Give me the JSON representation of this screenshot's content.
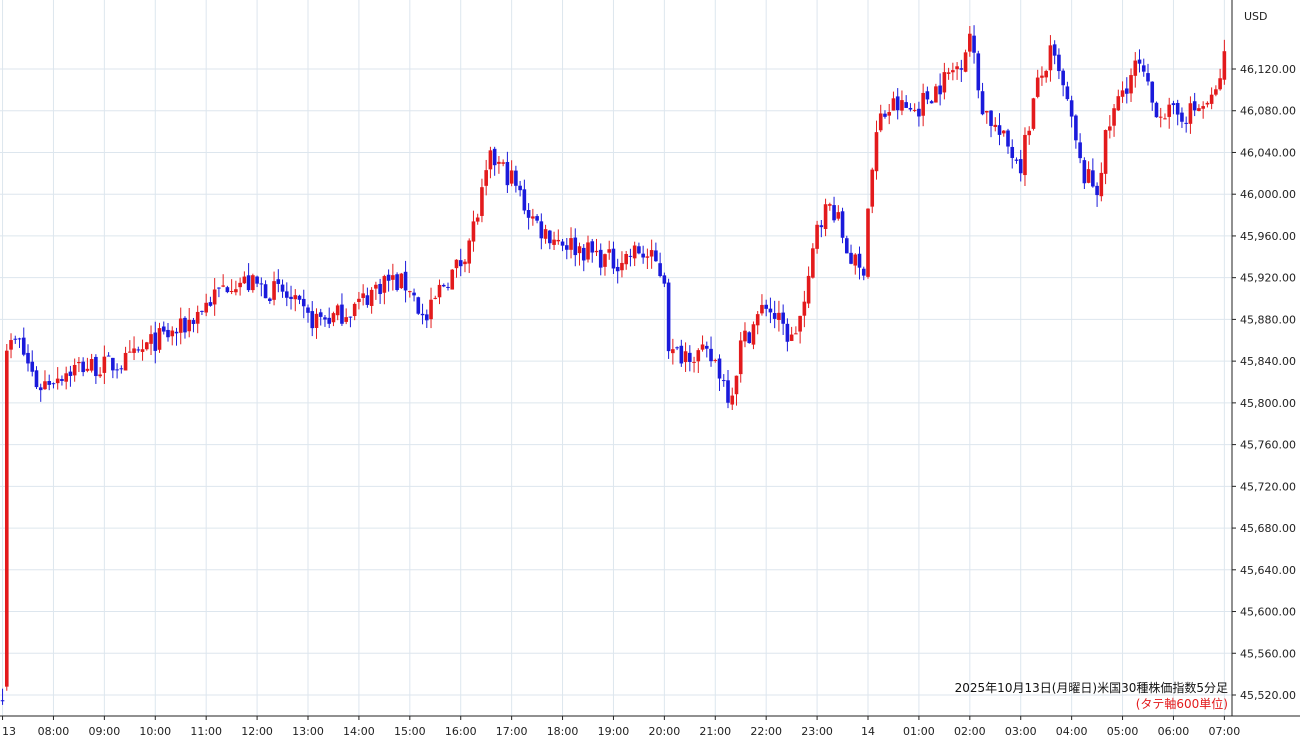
{
  "chart_data": {
    "type": "candlestick",
    "currency_label": "USD",
    "caption_line1": "2025年10月13日(月曜日)米国30種株価指数5分足",
    "caption_line2": "(タテ軸600単位)",
    "colors": {
      "up": "#e31a1c",
      "down": "#1a1adb",
      "grid": "#dde6ee",
      "axis": "#222222",
      "caption2": "#e31a1c"
    },
    "grid": true,
    "ylim": [
      45500,
      46170
    ],
    "y_ticks": [
      {
        "value": 45520,
        "label": "45,520.00"
      },
      {
        "value": 45560,
        "label": "45,560.00"
      },
      {
        "value": 45600,
        "label": "45,600.00"
      },
      {
        "value": 45640,
        "label": "45,640.00"
      },
      {
        "value": 45680,
        "label": "45,680.00"
      },
      {
        "value": 45720,
        "label": "45,720.00"
      },
      {
        "value": 45760,
        "label": "45,760.00"
      },
      {
        "value": 45800,
        "label": "45,800.00"
      },
      {
        "value": 45840,
        "label": "45,840.00"
      },
      {
        "value": 45880,
        "label": "45,880.00"
      },
      {
        "value": 45920,
        "label": "45,920.00"
      },
      {
        "value": 45960,
        "label": "45,960.00"
      },
      {
        "value": 46000,
        "label": "46,000.00"
      },
      {
        "value": 46040,
        "label": "46,040.00"
      },
      {
        "value": 46080,
        "label": "46,080.00"
      },
      {
        "value": 46120,
        "label": "46,120.00"
      }
    ],
    "x_ticks": [
      {
        "hours": 0,
        "label": "13"
      },
      {
        "hours": 1,
        "label": "08:00"
      },
      {
        "hours": 2,
        "label": "09:00"
      },
      {
        "hours": 3,
        "label": "10:00"
      },
      {
        "hours": 4,
        "label": "11:00"
      },
      {
        "hours": 5,
        "label": "12:00"
      },
      {
        "hours": 6,
        "label": "13:00"
      },
      {
        "hours": 7,
        "label": "14:00"
      },
      {
        "hours": 8,
        "label": "15:00"
      },
      {
        "hours": 9,
        "label": "16:00"
      },
      {
        "hours": 10,
        "label": "17:00"
      },
      {
        "hours": 11,
        "label": "18:00"
      },
      {
        "hours": 12,
        "label": "19:00"
      },
      {
        "hours": 13,
        "label": "20:00"
      },
      {
        "hours": 14,
        "label": "21:00"
      },
      {
        "hours": 15,
        "label": "22:00"
      },
      {
        "hours": 16,
        "label": "23:00"
      },
      {
        "hours": 17,
        "label": "14"
      },
      {
        "hours": 18,
        "label": "01:00"
      },
      {
        "hours": 19,
        "label": "02:00"
      },
      {
        "hours": 20,
        "label": "03:00"
      },
      {
        "hours": 21,
        "label": "04:00"
      },
      {
        "hours": 22,
        "label": "05:00"
      },
      {
        "hours": 23,
        "label": "06:00"
      },
      {
        "hours": 24,
        "label": "07:00"
      }
    ],
    "x_range_hours": [
      -0.05,
      24.15
    ],
    "series_anchors": [
      [
        0.0,
        45525
      ],
      [
        0.05,
        45850
      ],
      [
        0.3,
        45860
      ],
      [
        0.7,
        45815
      ],
      [
        1.0,
        45825
      ],
      [
        1.5,
        45835
      ],
      [
        2.0,
        45835
      ],
      [
        2.5,
        45840
      ],
      [
        3.0,
        45860
      ],
      [
        3.5,
        45870
      ],
      [
        4.0,
        45895
      ],
      [
        4.5,
        45918
      ],
      [
        5.0,
        45912
      ],
      [
        5.5,
        45905
      ],
      [
        6.0,
        45880
      ],
      [
        6.5,
        45882
      ],
      [
        7.0,
        45895
      ],
      [
        7.5,
        45918
      ],
      [
        8.0,
        45912
      ],
      [
        8.3,
        45875
      ],
      [
        8.6,
        45910
      ],
      [
        9.0,
        45935
      ],
      [
        9.3,
        45975
      ],
      [
        9.6,
        46035
      ],
      [
        10.0,
        46015
      ],
      [
        10.3,
        45985
      ],
      [
        10.6,
        45965
      ],
      [
        11.0,
        45955
      ],
      [
        11.5,
        45945
      ],
      [
        12.0,
        45935
      ],
      [
        12.5,
        45945
      ],
      [
        12.8,
        45935
      ],
      [
        13.0,
        45920
      ],
      [
        13.1,
        45845
      ],
      [
        13.5,
        45850
      ],
      [
        14.0,
        45840
      ],
      [
        14.3,
        45805
      ],
      [
        14.5,
        45855
      ],
      [
        15.0,
        45895
      ],
      [
        15.2,
        45880
      ],
      [
        15.5,
        45860
      ],
      [
        15.8,
        45900
      ],
      [
        16.0,
        45975
      ],
      [
        16.3,
        45990
      ],
      [
        16.6,
        45945
      ],
      [
        16.9,
        45920
      ],
      [
        17.0,
        45990
      ],
      [
        17.2,
        46070
      ],
      [
        17.5,
        46085
      ],
      [
        17.9,
        46080
      ],
      [
        18.3,
        46100
      ],
      [
        18.8,
        46125
      ],
      [
        19.0,
        46155
      ],
      [
        19.2,
        46090
      ],
      [
        19.6,
        46055
      ],
      [
        20.0,
        46030
      ],
      [
        20.3,
        46100
      ],
      [
        20.6,
        46135
      ],
      [
        20.9,
        46090
      ],
      [
        21.2,
        46020
      ],
      [
        21.5,
        46005
      ],
      [
        21.7,
        46060
      ],
      [
        22.0,
        46100
      ],
      [
        22.3,
        46125
      ],
      [
        22.6,
        46085
      ],
      [
        23.0,
        46075
      ],
      [
        23.4,
        46080
      ],
      [
        23.8,
        46090
      ],
      [
        24.0,
        46130
      ]
    ]
  }
}
